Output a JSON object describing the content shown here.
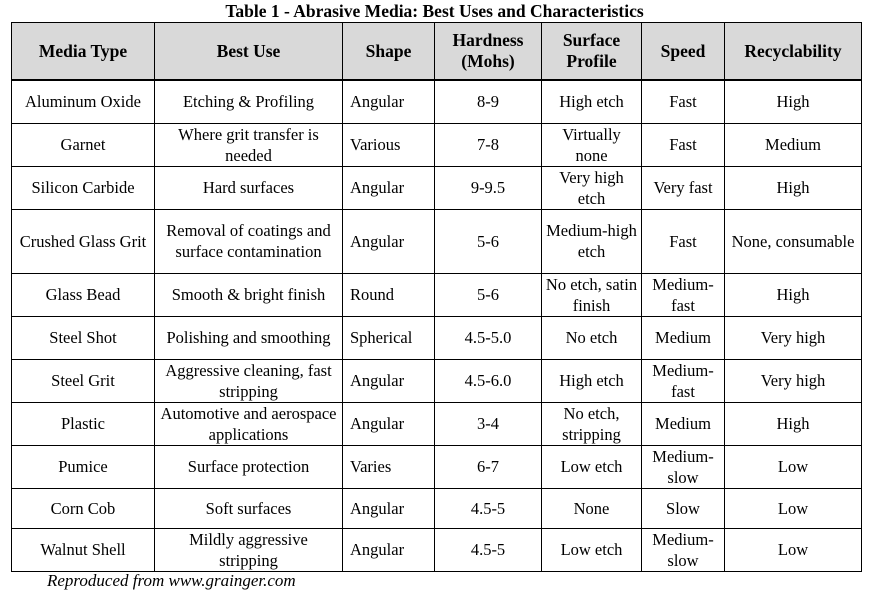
{
  "table": {
    "title": "Table 1 - Abrasive Media: Best Uses and Characteristics",
    "headers": [
      "Media Type",
      "Best Use",
      "Shape",
      "Hardness (Mohs)",
      "Surface Profile",
      "Speed",
      "Recyclability"
    ],
    "rows": [
      [
        "Aluminum Oxide",
        "Etching & Profiling",
        "Angular",
        "8-9",
        "High etch",
        "Fast",
        "High"
      ],
      [
        "Garnet",
        "Where grit transfer is needed",
        "Various",
        "7-8",
        "Virtually none",
        "Fast",
        "Medium"
      ],
      [
        "Silicon Carbide",
        "Hard surfaces",
        "Angular",
        "9-9.5",
        "Very high etch",
        "Very fast",
        "High"
      ],
      [
        "Crushed Glass Grit",
        "Removal of coatings and surface contamination",
        "Angular",
        "5-6",
        "Medium-high etch",
        "Fast",
        "None, consumable"
      ],
      [
        "Glass Bead",
        "Smooth & bright finish",
        "Round",
        "5-6",
        "No etch, satin finish",
        "Medium-fast",
        "High"
      ],
      [
        "Steel Shot",
        "Polishing and smoothing",
        "Spherical",
        "4.5-5.0",
        "No etch",
        "Medium",
        "Very high"
      ],
      [
        "Steel Grit",
        "Aggressive cleaning, fast stripping",
        "Angular",
        "4.5-6.0",
        "High etch",
        "Medium-fast",
        "Very high"
      ],
      [
        "Plastic",
        "Automotive and aerospace applications",
        "Angular",
        "3-4",
        "No etch, stripping",
        "Medium",
        "High"
      ],
      [
        "Pumice",
        "Surface protection",
        "Varies",
        "6-7",
        "Low etch",
        "Medium-slow",
        "Low"
      ],
      [
        "Corn Cob",
        "Soft surfaces",
        "Angular",
        "4.5-5",
        "None",
        "Slow",
        "Low"
      ],
      [
        "Walnut Shell",
        "Mildly aggressive stripping",
        "Angular",
        "4.5-5",
        "Low etch",
        "Medium-slow",
        "Low"
      ]
    ],
    "footer": "Reproduced from www.grainger.com"
  },
  "chart_data": {
    "type": "table",
    "title": "Table 1 - Abrasive Media: Best Uses and Characteristics",
    "columns": [
      "Media Type",
      "Best Use",
      "Shape",
      "Hardness (Mohs)",
      "Surface Profile",
      "Speed",
      "Recyclability"
    ],
    "rows": [
      [
        "Aluminum Oxide",
        "Etching & Profiling",
        "Angular",
        "8-9",
        "High etch",
        "Fast",
        "High"
      ],
      [
        "Garnet",
        "Where grit transfer is needed",
        "Various",
        "7-8",
        "Virtually none",
        "Fast",
        "Medium"
      ],
      [
        "Silicon Carbide",
        "Hard surfaces",
        "Angular",
        "9-9.5",
        "Very high etch",
        "Very fast",
        "High"
      ],
      [
        "Crushed Glass Grit",
        "Removal of coatings and surface contamination",
        "Angular",
        "5-6",
        "Medium-high etch",
        "Fast",
        "None, consumable"
      ],
      [
        "Glass Bead",
        "Smooth & bright finish",
        "Round",
        "5-6",
        "No etch, satin finish",
        "Medium-fast",
        "High"
      ],
      [
        "Steel Shot",
        "Polishing and smoothing",
        "Spherical",
        "4.5-5.0",
        "No etch",
        "Medium",
        "Very high"
      ],
      [
        "Steel Grit",
        "Aggressive cleaning, fast stripping",
        "Angular",
        "4.5-6.0",
        "High etch",
        "Medium-fast",
        "Very high"
      ],
      [
        "Plastic",
        "Automotive and aerospace applications",
        "Angular",
        "3-4",
        "No etch, stripping",
        "Medium",
        "High"
      ],
      [
        "Pumice",
        "Surface protection",
        "Varies",
        "6-7",
        "Low etch",
        "Medium-slow",
        "Low"
      ],
      [
        "Corn Cob",
        "Soft surfaces",
        "Angular",
        "4.5-5",
        "None",
        "Slow",
        "Low"
      ],
      [
        "Walnut Shell",
        "Mildly aggressive stripping",
        "Angular",
        "4.5-5",
        "Low etch",
        "Medium-slow",
        "Low"
      ]
    ]
  }
}
